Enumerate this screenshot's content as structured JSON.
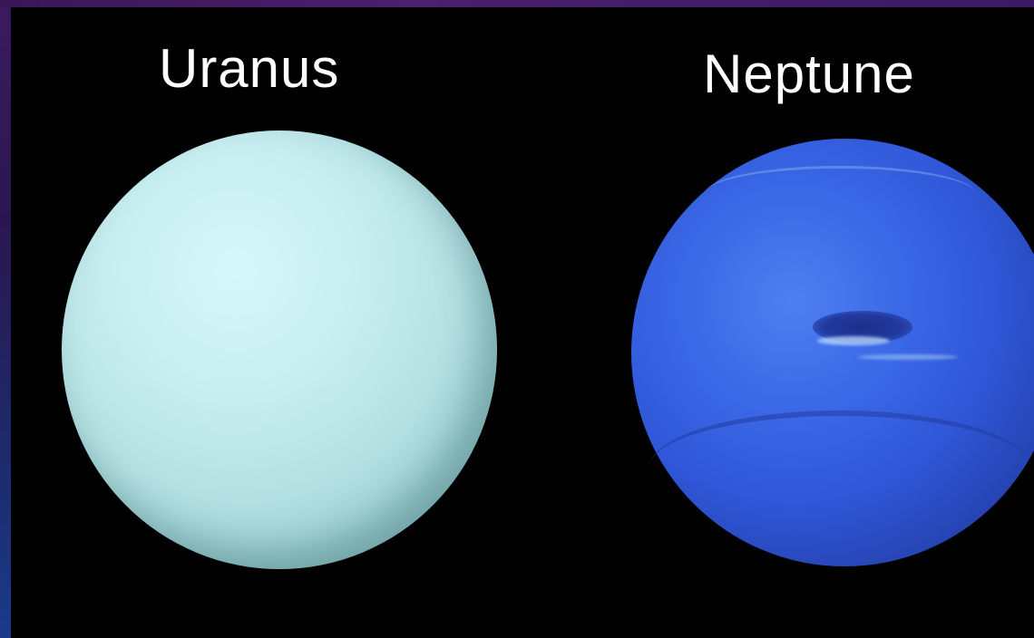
{
  "labels": {
    "left": "Uranus",
    "right": "Neptune"
  },
  "colors": {
    "background": "#000000",
    "frame_purple": "#3b1a5e",
    "uranus": "#b6e2e4",
    "neptune": "#3a68e6"
  }
}
